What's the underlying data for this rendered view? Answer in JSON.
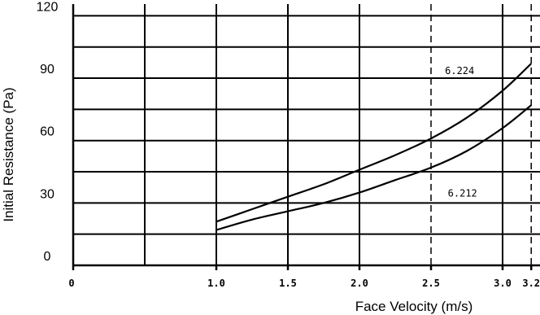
{
  "chart_data": {
    "type": "line",
    "title": "",
    "xlabel": "Face Velocity (m/s)",
    "ylabel": "Initial Resistance (Pa)",
    "x_ticks": [
      {
        "value": 0,
        "label": "0"
      },
      {
        "value": 1.0,
        "label": "1.0"
      },
      {
        "value": 1.5,
        "label": "1.5"
      },
      {
        "value": 2.0,
        "label": "2.0"
      },
      {
        "value": 2.5,
        "label": "2.5"
      },
      {
        "value": 3.0,
        "label": "3.0"
      },
      {
        "value": 3.2,
        "label": "3.2"
      }
    ],
    "y_ticks": [
      {
        "value": 0,
        "label": "0"
      },
      {
        "value": 30,
        "label": "30"
      },
      {
        "value": 60,
        "label": "60"
      },
      {
        "value": 90,
        "label": "90"
      },
      {
        "value": 120,
        "label": "120"
      }
    ],
    "grid": true,
    "series": [
      {
        "name": "6.224",
        "x": [
          1.0,
          1.25,
          1.5,
          1.75,
          2.0,
          2.25,
          2.5,
          2.75,
          3.0,
          3.2
        ],
        "y": [
          21,
          27,
          33,
          39,
          46,
          53,
          61,
          71,
          84,
          97
        ]
      },
      {
        "name": "6.212",
        "x": [
          1.0,
          1.25,
          1.5,
          1.75,
          2.0,
          2.25,
          2.5,
          2.75,
          3.0,
          3.2
        ],
        "y": [
          17,
          22,
          26,
          30,
          35,
          41,
          47,
          55,
          66,
          77
        ]
      }
    ]
  }
}
